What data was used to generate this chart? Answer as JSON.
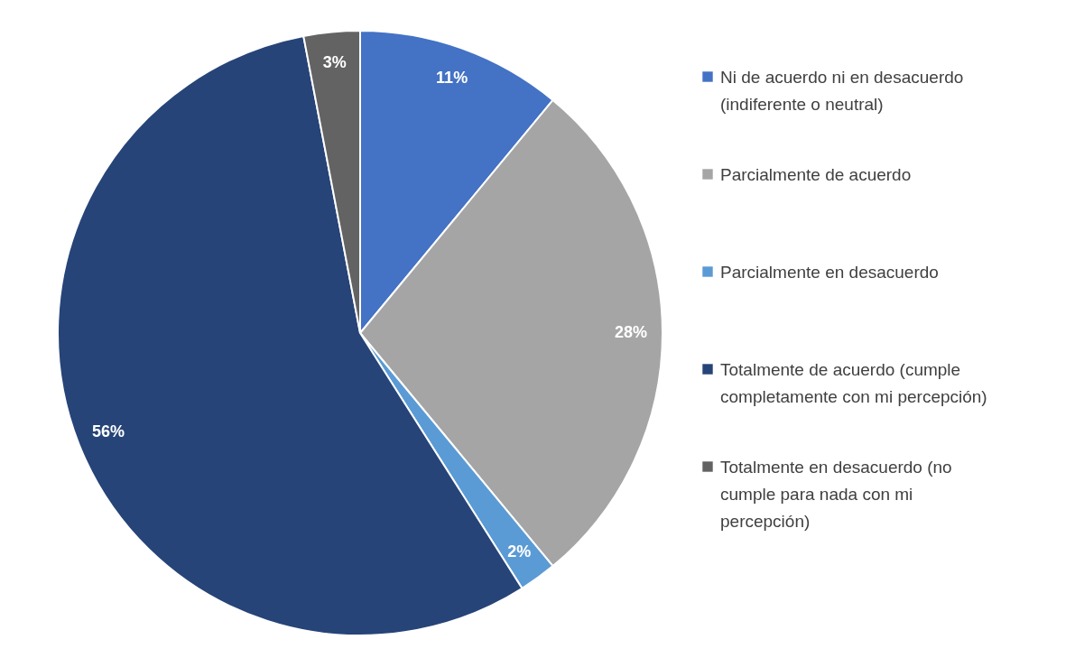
{
  "chart_data": {
    "type": "pie",
    "categories": [
      "Ni de acuerdo ni en desacuerdo (indiferente o neutral)",
      "Parcialmente de acuerdo",
      "Parcialmente en desacuerdo",
      "Totalmente de acuerdo (cumple completamente con mi percepción)",
      "Totalmente en desacuerdo (no cumple para nada con mi percepción)"
    ],
    "values": [
      11,
      28,
      2,
      56,
      3
    ],
    "colors": [
      "#4472c4",
      "#a5a5a5",
      "#5b9bd5",
      "#264478",
      "#636363"
    ],
    "value_labels": [
      "11%",
      "28%",
      "2%",
      "56%",
      "3%"
    ],
    "legend": "right"
  }
}
